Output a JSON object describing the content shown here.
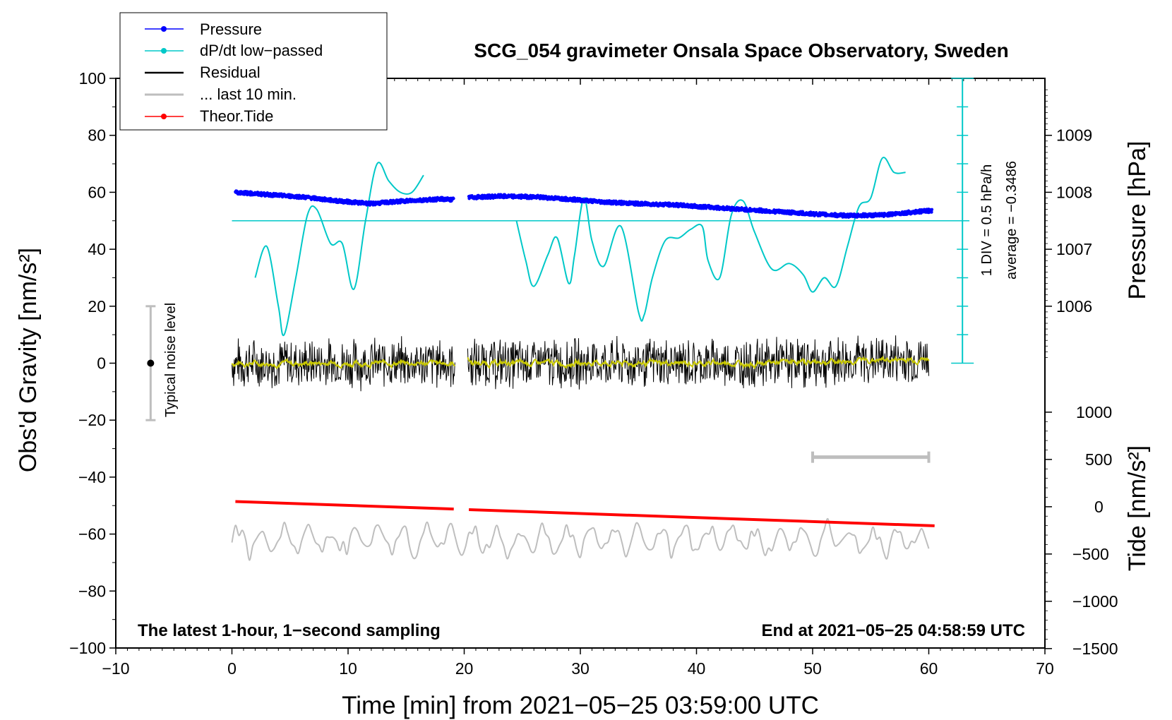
{
  "chart_data": {
    "type": "line",
    "title": "SCG_054 gravimeter Onsala Space Observatory, Sweden",
    "xlabel": "Time [min] from 2021−05−25 03:59:00 UTC",
    "ylabel_left": "Obs'd Gravity [nm/s²]",
    "ylabel_pressure": "Pressure [hPa]",
    "ylabel_tide": "Tide [nm/s²]",
    "xlim": [
      -10,
      70
    ],
    "ylim": [
      -100,
      100
    ],
    "x_ticks": [
      -10,
      0,
      10,
      20,
      30,
      40,
      50,
      60,
      70
    ],
    "x_tick_labels": [
      "−10",
      "0",
      "10",
      "20",
      "30",
      "40",
      "50",
      "60",
      "70"
    ],
    "y_ticks": [
      -100,
      -80,
      -60,
      -40,
      -20,
      0,
      20,
      40,
      60,
      80,
      100
    ],
    "y_tick_labels": [
      "−100",
      "−80",
      "−60",
      "−40",
      "−20",
      "0",
      "20",
      "40",
      "60",
      "80",
      "100"
    ],
    "pressure_axis": {
      "gravity_at_1006": 20,
      "gravity_per_hpa": 20,
      "ticks": [
        1006,
        1007,
        1008,
        1009
      ],
      "labels": [
        "1006",
        "1007",
        "1008",
        "1009"
      ]
    },
    "tide_axis": {
      "gravity_at_0": -50.4,
      "gravity_per_500": 16.6,
      "ticks": [
        1000,
        500,
        0,
        -500,
        -1000,
        -1500
      ],
      "labels": [
        "1000",
        "500",
        "0",
        "−500",
        "−1000",
        "−1500"
      ]
    },
    "legend": {
      "position": "top-left",
      "items": [
        {
          "label": "Pressure",
          "color": "#0000ff",
          "marker": true
        },
        {
          "label": "dP/dt low−passed",
          "color": "#00c8c8",
          "marker": true
        },
        {
          "label": "Residual",
          "color": "#000000",
          "marker": false
        },
        {
          "label": "... last 10 min.",
          "color": "#bebebe",
          "marker": false
        },
        {
          "label": "Theor.Tide",
          "color": "#ff0000",
          "marker": true
        }
      ]
    },
    "colors": {
      "pressure": "#0000ff",
      "dpdt": "#00c8c8",
      "residual": "#000000",
      "residual_smooth": "#c8c800",
      "last10": "#bebebe",
      "tide": "#ff0000",
      "noise_bar": "#bebebe"
    },
    "gap": {
      "start": 19.2,
      "end": 20.3
    },
    "dpdt_scale": {
      "x_position": 62.9,
      "baseline_gravity": 0,
      "top_gravity": 100,
      "tick_step": 10,
      "zero_line_gravity": 50,
      "div_label": "1 DIV = 0.5 hPa/h",
      "average_label": "average = −0.3486"
    },
    "noise_level": {
      "x": -7,
      "center": 0,
      "low": -20,
      "high": 20,
      "label": "Typical noise level"
    },
    "last10_bar": {
      "x_start": 50,
      "x_end": 60,
      "y": -33
    },
    "series": [
      {
        "name": "Pressure",
        "unit": "hPa",
        "segments": [
          {
            "x": [
              0.3,
              3,
              6,
              9,
              12,
              15,
              18,
              19.1
            ],
            "y": [
              1008.0,
              1007.96,
              1007.92,
              1007.85,
              1007.8,
              1007.85,
              1007.88,
              1007.87
            ]
          },
          {
            "x": [
              20.4,
              23,
              26,
              29,
              32,
              35,
              38,
              41,
              44,
              47,
              50,
              53,
              56,
              58,
              60.3
            ],
            "y": [
              1007.91,
              1007.93,
              1007.92,
              1007.88,
              1007.83,
              1007.8,
              1007.78,
              1007.74,
              1007.7,
              1007.66,
              1007.62,
              1007.59,
              1007.6,
              1007.64,
              1007.68
            ]
          }
        ]
      },
      {
        "name": "dP/dt low−passed",
        "unit": "nm/s²-plot",
        "segments": [
          {
            "x": [
              2,
              3,
              4,
              4.5,
              5.5,
              6.5,
              7.3,
              8.5,
              9.5,
              10.5,
              11.5,
              12.5,
              13.5,
              14.5,
              15.5,
              16.5
            ],
            "y": [
              30,
              41,
              20,
              10,
              30,
              52,
              54,
              42,
              42,
              26,
              50,
              70,
              64,
              60,
              60,
              66
            ]
          },
          {
            "x": [
              24.5,
              25.3,
              26,
              27.2,
              28,
              29,
              29.5,
              30.3,
              31,
              32,
              33.5,
              35,
              35.5,
              36.2,
              37.3,
              38.5,
              39.5,
              40.5,
              41,
              42,
              43,
              44,
              45,
              46.5,
              48,
              49.2,
              50,
              51,
              52,
              53,
              54,
              55,
              56,
              57,
              58
            ],
            "y": [
              50,
              36,
              27,
              38,
              44,
              28,
              38,
              58,
              43,
              34,
              48,
              18,
              17,
              30,
              43,
              44,
              47,
              48,
              36,
              30,
              52,
              57,
              46,
              33,
              35,
              31,
              25,
              30,
              27,
              41,
              55,
              58,
              72,
              67,
              67
            ]
          }
        ]
      },
      {
        "name": "Theor.Tide",
        "unit": "nm/s²",
        "segments": [
          {
            "x": [
              0.3,
              19.1
            ],
            "y": [
              55,
              -24
            ]
          },
          {
            "x": [
              20.4,
              60.5
            ],
            "y": [
              -31,
              -202
            ]
          }
        ]
      },
      {
        "name": "Residual",
        "description": "1-second residual noise band around 0 nm/s²",
        "segments": [
          {
            "x_range": [
              0,
              19.2
            ],
            "center": 0,
            "amplitude": 10
          },
          {
            "x_range": [
              20.3,
              60
            ],
            "center": 0,
            "amplitude": 10
          }
        ]
      },
      {
        "name": "... last 10 min.",
        "description": "last 10 minutes of residual redrawn near −62 nm/s²",
        "segments": [
          {
            "x_range": [
              0,
              60
            ],
            "center": -62,
            "amplitude": 7
          }
        ]
      }
    ],
    "annotations": {
      "bottom_left": "The latest 1-hour, 1−second sampling",
      "bottom_right": "End at 2021−05−25 04:58:59 UTC"
    }
  }
}
